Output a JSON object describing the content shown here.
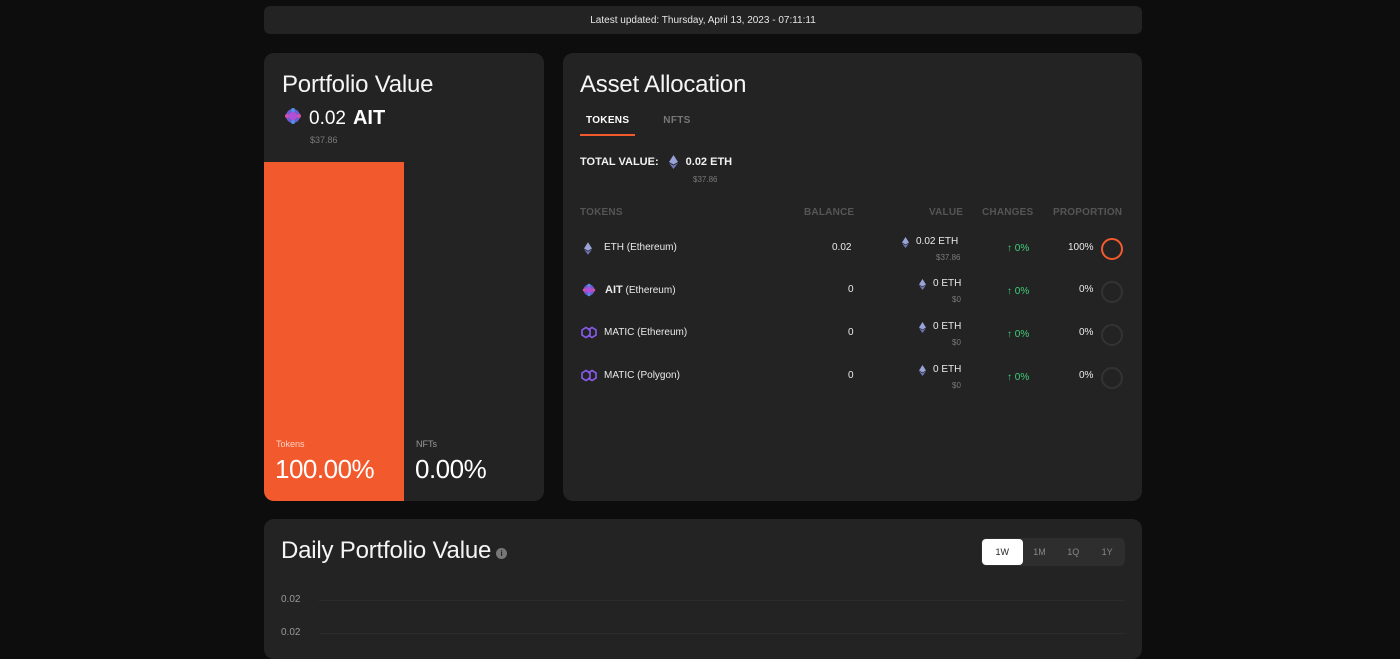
{
  "header": {
    "last_updated": "Latest updated: Thursday, April 13, 2023 - 07:11:11"
  },
  "portfolio": {
    "title": "Portfolio Value",
    "amount": "0.02",
    "symbol": "AIT",
    "usd": "$37.86",
    "tokens_label": "Tokens",
    "tokens_pct": "100.00%",
    "tokens_fraction": 1.0,
    "nfts_label": "NFTs",
    "nfts_pct": "0.00%",
    "accent": "#f25a2e"
  },
  "allocation": {
    "title": "Asset Allocation",
    "tabs": [
      "TOKENS",
      "NFTS"
    ],
    "active_tab": "TOKENS",
    "total_label": "TOTAL VALUE:",
    "total_value": "0.02 ETH",
    "total_usd": "$37.86",
    "columns": [
      "TOKENS",
      "BALANCE",
      "VALUE",
      "CHANGES",
      "PROPORTION"
    ],
    "rows": [
      {
        "icon": "ethereum-icon",
        "token": "ETH (Ethereum)",
        "balance": "0.02",
        "value": "0.02 ETH",
        "value_usd": "$37.86",
        "change": "0%",
        "proportion": "100%",
        "proportion_fraction": 1.0
      },
      {
        "icon": "ait-icon",
        "token_bold": "AIT",
        "token": "(Ethereum)",
        "balance": "0",
        "value": "0 ETH",
        "value_usd": "$0",
        "change": "0%",
        "proportion": "0%",
        "proportion_fraction": 0
      },
      {
        "icon": "polygon-icon",
        "token": "MATIC (Ethereum)",
        "balance": "0",
        "value": "0 ETH",
        "value_usd": "$0",
        "change": "0%",
        "proportion": "0%",
        "proportion_fraction": 0
      },
      {
        "icon": "polygon-icon",
        "token": "MATIC (Polygon)",
        "balance": "0",
        "value": "0 ETH",
        "value_usd": "$0",
        "change": "0%",
        "proportion": "0%",
        "proportion_fraction": 0
      }
    ],
    "change_up_glyph": "↑"
  },
  "daily": {
    "title": "Daily Portfolio Value",
    "info_glyph": "i",
    "ranges": [
      "1W",
      "1M",
      "1Q",
      "1Y"
    ],
    "active_range": "1W",
    "y_ticks": [
      "0.02",
      "0.02"
    ]
  }
}
